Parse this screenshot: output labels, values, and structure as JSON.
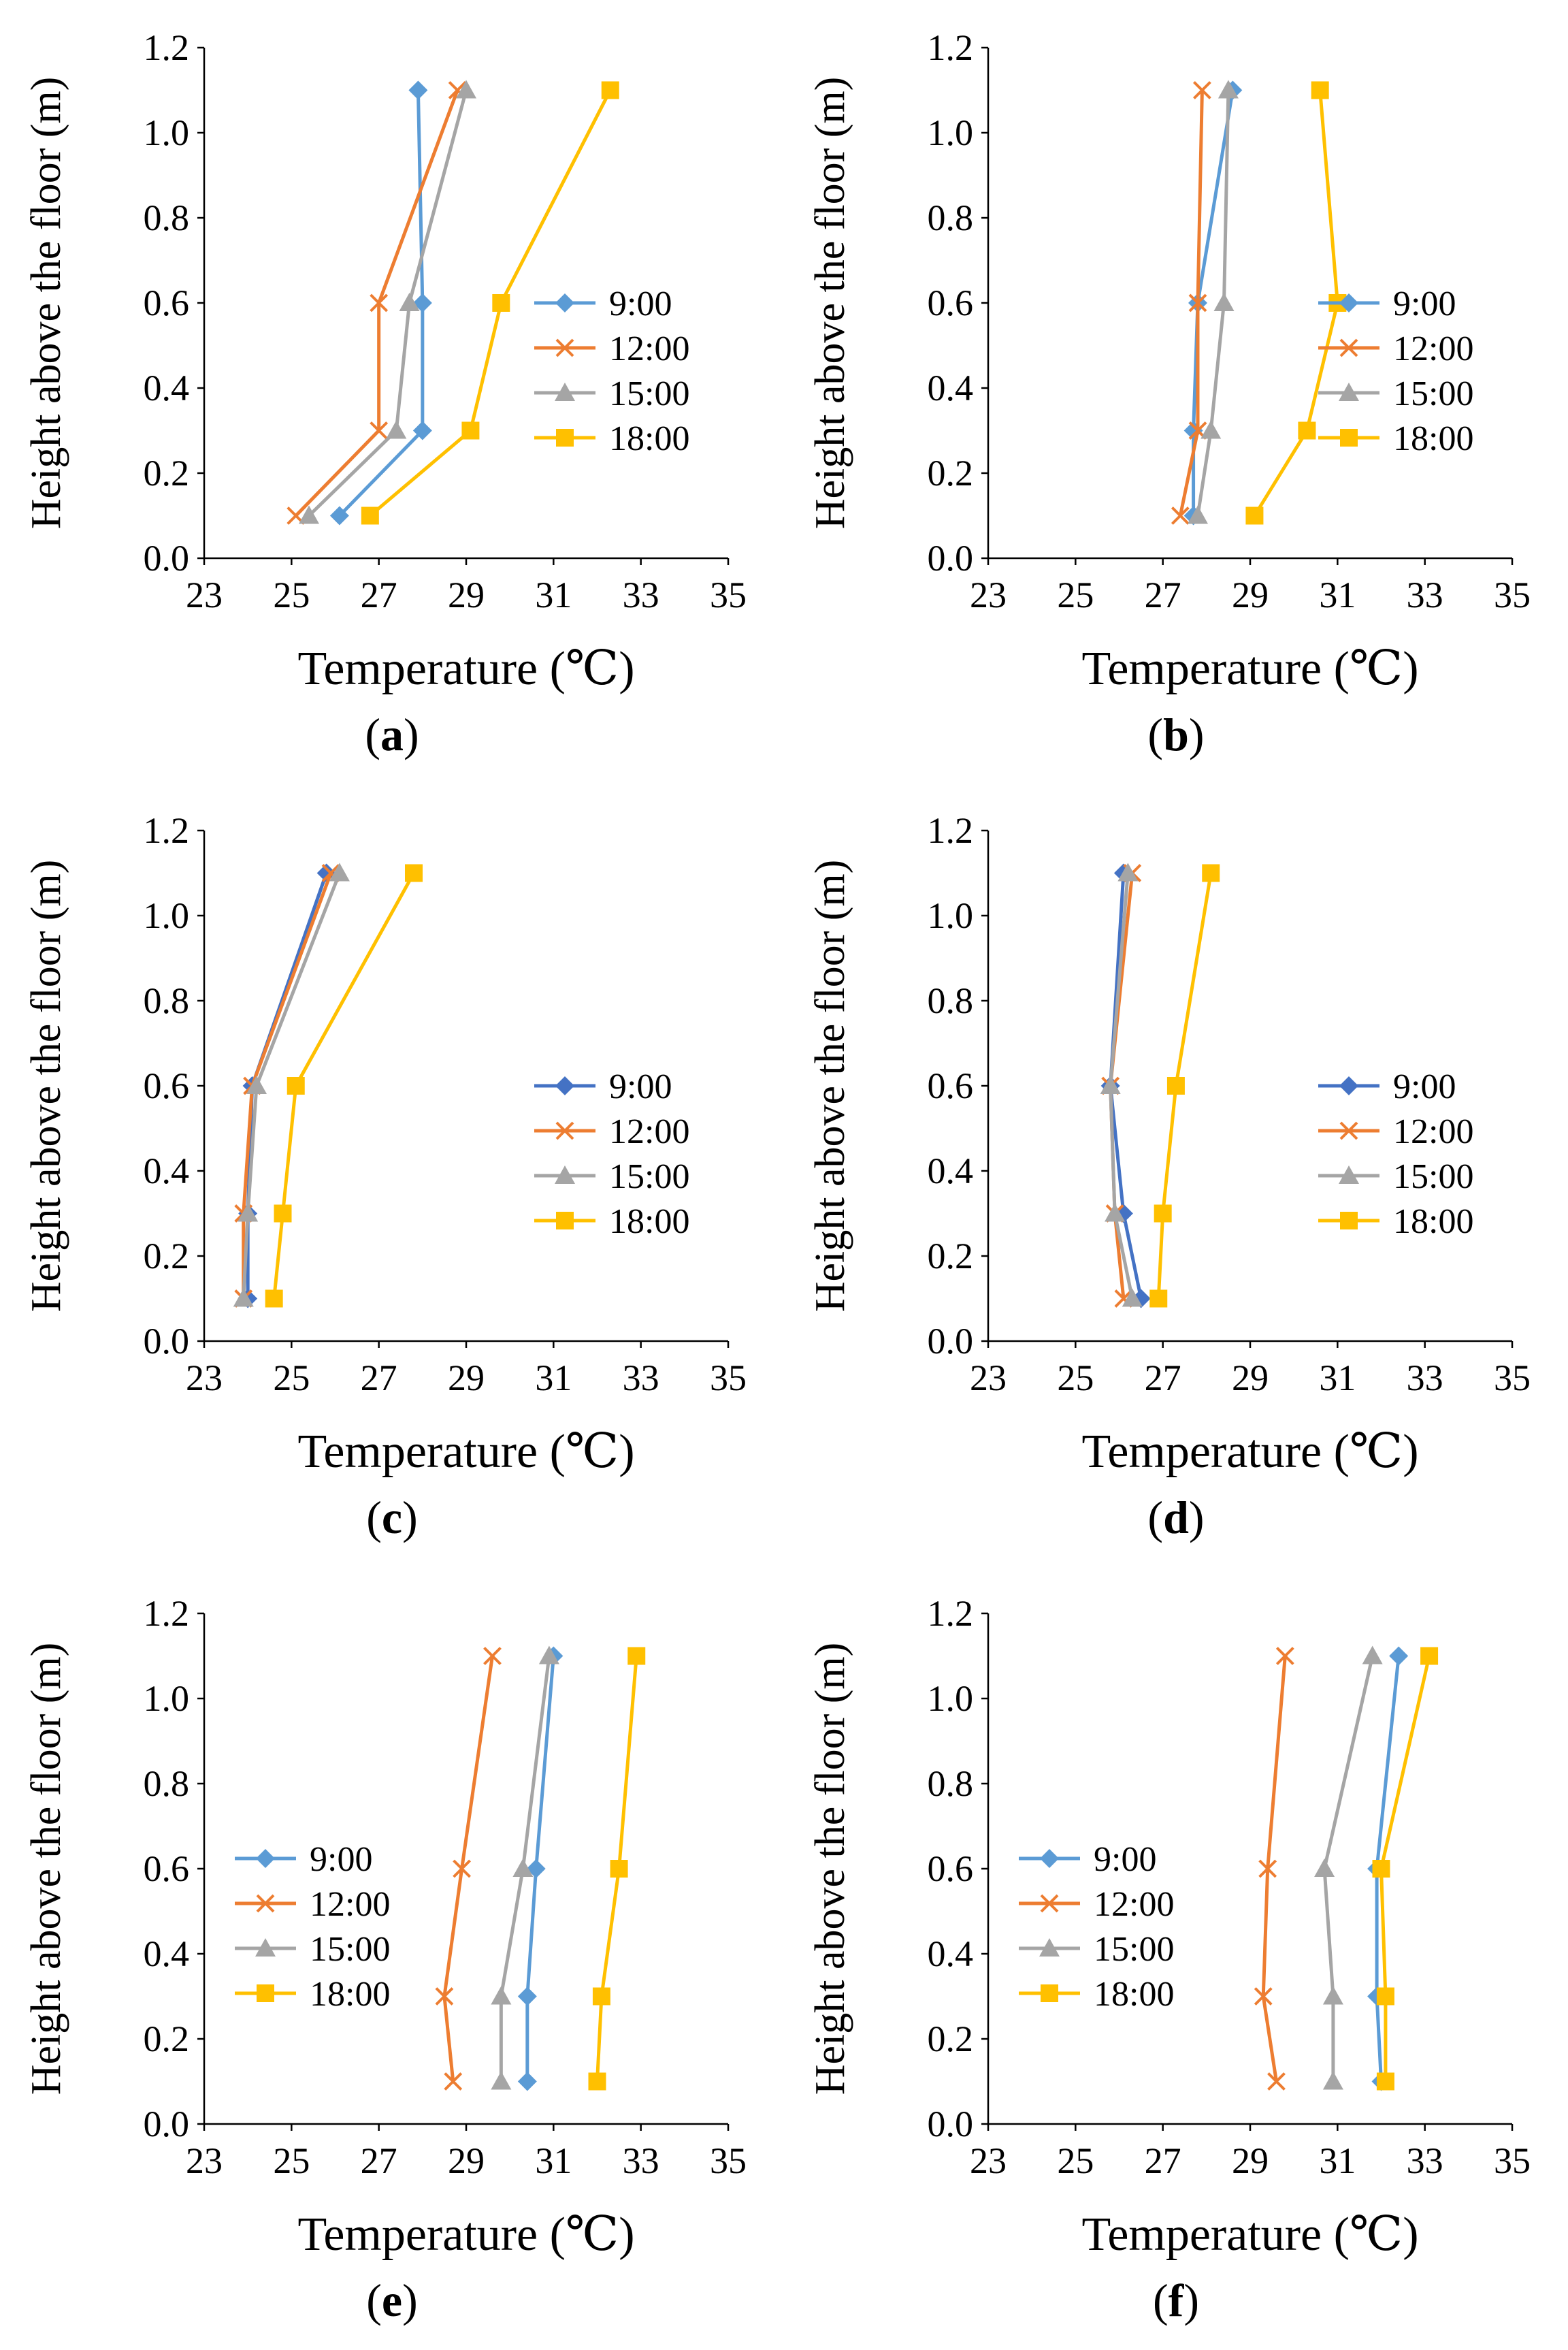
{
  "chart_data": [
    {
      "panel": "a",
      "type": "line",
      "xlabel": "Temperature (℃)",
      "ylabel": "Height above the floor (m)",
      "xlim": [
        23,
        35
      ],
      "ylim": [
        0,
        1.2
      ],
      "xticks": [
        "23",
        "25",
        "27",
        "29",
        "31",
        "33",
        "35"
      ],
      "yticks": [
        "0.0",
        "0.2",
        "0.4",
        "0.6",
        "0.8",
        "1.0",
        "1.2"
      ],
      "legend_position": "right-middle",
      "heights": [
        0.1,
        0.3,
        0.6,
        1.1
      ],
      "series": [
        {
          "name": "9:00",
          "temps": [
            26.1,
            28.0,
            28.0,
            27.9
          ]
        },
        {
          "name": "12:00",
          "temps": [
            25.1,
            27.0,
            27.0,
            28.8
          ]
        },
        {
          "name": "15:00",
          "temps": [
            25.4,
            27.4,
            27.7,
            29.0
          ]
        },
        {
          "name": "18:00",
          "temps": [
            26.8,
            29.1,
            29.8,
            32.3
          ]
        }
      ]
    },
    {
      "panel": "b",
      "type": "line",
      "xlabel": "Temperature (℃)",
      "ylabel": "Height above the floor (m)",
      "xlim": [
        23,
        35
      ],
      "ylim": [
        0,
        1.2
      ],
      "xticks": [
        "23",
        "25",
        "27",
        "29",
        "31",
        "33",
        "35"
      ],
      "yticks": [
        "0.0",
        "0.2",
        "0.4",
        "0.6",
        "0.8",
        "1.0",
        "1.2"
      ],
      "legend_position": "right-middle",
      "heights": [
        0.1,
        0.3,
        0.6,
        1.1
      ],
      "series": [
        {
          "name": "9:00",
          "temps": [
            27.7,
            27.7,
            27.8,
            28.6
          ]
        },
        {
          "name": "12:00",
          "temps": [
            27.4,
            27.8,
            27.8,
            27.9
          ]
        },
        {
          "name": "15:00",
          "temps": [
            27.8,
            28.1,
            28.4,
            28.5
          ]
        },
        {
          "name": "18:00",
          "temps": [
            29.1,
            30.3,
            31.0,
            30.6
          ]
        }
      ]
    },
    {
      "panel": "c",
      "type": "line",
      "xlabel": "Temperature (℃)",
      "ylabel": "Height above the floor (m)",
      "xlim": [
        23,
        35
      ],
      "ylim": [
        0,
        1.2
      ],
      "xticks": [
        "23",
        "25",
        "27",
        "29",
        "31",
        "33",
        "35"
      ],
      "yticks": [
        "0.0",
        "0.2",
        "0.4",
        "0.6",
        "0.8",
        "1.0",
        "1.2"
      ],
      "legend_position": "right-middle",
      "heights": [
        0.1,
        0.3,
        0.6,
        1.1
      ],
      "series": [
        {
          "name": "9:00",
          "temps": [
            24.0,
            24.0,
            24.1,
            25.8
          ]
        },
        {
          "name": "12:00",
          "temps": [
            23.9,
            23.9,
            24.1,
            25.9
          ]
        },
        {
          "name": "15:00",
          "temps": [
            23.9,
            24.0,
            24.2,
            26.1
          ]
        },
        {
          "name": "18:00",
          "temps": [
            24.6,
            24.8,
            25.1,
            27.8
          ]
        }
      ]
    },
    {
      "panel": "d",
      "type": "line",
      "xlabel": "Temperature (℃)",
      "ylabel": "Height above the floor (m)",
      "xlim": [
        23,
        35
      ],
      "ylim": [
        0,
        1.2
      ],
      "xticks": [
        "23",
        "25",
        "27",
        "29",
        "31",
        "33",
        "35"
      ],
      "yticks": [
        "0.0",
        "0.2",
        "0.4",
        "0.6",
        "0.8",
        "1.0",
        "1.2"
      ],
      "legend_position": "right-middle",
      "heights": [
        0.1,
        0.3,
        0.6,
        1.1
      ],
      "series": [
        {
          "name": "9:00",
          "temps": [
            26.5,
            26.1,
            25.8,
            26.1
          ]
        },
        {
          "name": "12:00",
          "temps": [
            26.1,
            25.9,
            25.8,
            26.3
          ]
        },
        {
          "name": "15:00",
          "temps": [
            26.3,
            25.9,
            25.8,
            26.2
          ]
        },
        {
          "name": "18:00",
          "temps": [
            26.9,
            27.0,
            27.3,
            28.1
          ]
        }
      ]
    },
    {
      "panel": "e",
      "type": "line",
      "xlabel": "Temperature (℃)",
      "ylabel": "Height above the floor (m)",
      "xlim": [
        23,
        35
      ],
      "ylim": [
        0,
        1.2
      ],
      "xticks": [
        "23",
        "25",
        "27",
        "29",
        "31",
        "33",
        "35"
      ],
      "yticks": [
        "0.0",
        "0.2",
        "0.4",
        "0.6",
        "0.8",
        "1.0",
        "1.2"
      ],
      "legend_position": "left-middle",
      "heights": [
        0.1,
        0.3,
        0.6,
        1.1
      ],
      "series": [
        {
          "name": "9:00",
          "temps": [
            30.4,
            30.4,
            30.6,
            31.0
          ]
        },
        {
          "name": "12:00",
          "temps": [
            28.7,
            28.5,
            28.9,
            29.6
          ]
        },
        {
          "name": "15:00",
          "temps": [
            29.8,
            29.8,
            30.3,
            30.9
          ]
        },
        {
          "name": "18:00",
          "temps": [
            32.0,
            32.1,
            32.5,
            32.9
          ]
        }
      ]
    },
    {
      "panel": "f",
      "type": "line",
      "xlabel": "Temperature (℃)",
      "ylabel": "Height above the floor (m)",
      "xlim": [
        23,
        35
      ],
      "ylim": [
        0,
        1.2
      ],
      "xticks": [
        "23",
        "25",
        "27",
        "29",
        "31",
        "33",
        "35"
      ],
      "yticks": [
        "0.0",
        "0.2",
        "0.4",
        "0.6",
        "0.8",
        "1.0",
        "1.2"
      ],
      "legend_position": "left-middle",
      "heights": [
        0.1,
        0.3,
        0.6,
        1.1
      ],
      "series": [
        {
          "name": "9:00",
          "temps": [
            32.0,
            31.9,
            31.9,
            32.4
          ]
        },
        {
          "name": "12:00",
          "temps": [
            29.6,
            29.3,
            29.4,
            29.8
          ]
        },
        {
          "name": "15:00",
          "temps": [
            30.9,
            30.9,
            30.7,
            31.8
          ]
        },
        {
          "name": "18:00",
          "temps": [
            32.1,
            32.1,
            32.0,
            33.1
          ]
        }
      ]
    }
  ],
  "series_colors": {
    "9:00": "#5b9bd5",
    "12:00": "#ed7d31",
    "15:00": "#a5a5a5",
    "18:00": "#ffc000"
  },
  "series_colors_alt": {
    "9:00": "#4472c4"
  },
  "series_markers": {
    "9:00": "diamond",
    "12:00": "cross",
    "15:00": "triangle",
    "18:00": "square"
  },
  "captions": [
    {
      "open": "(",
      "letter": "a",
      "close": ")"
    },
    {
      "open": "(",
      "letter": "b",
      "close": ")"
    },
    {
      "open": "(",
      "letter": "c",
      "close": ")"
    },
    {
      "open": "(",
      "letter": "d",
      "close": ")"
    },
    {
      "open": "(",
      "letter": "e",
      "close": ")"
    },
    {
      "open": "(",
      "letter": "f",
      "close": ")"
    }
  ]
}
